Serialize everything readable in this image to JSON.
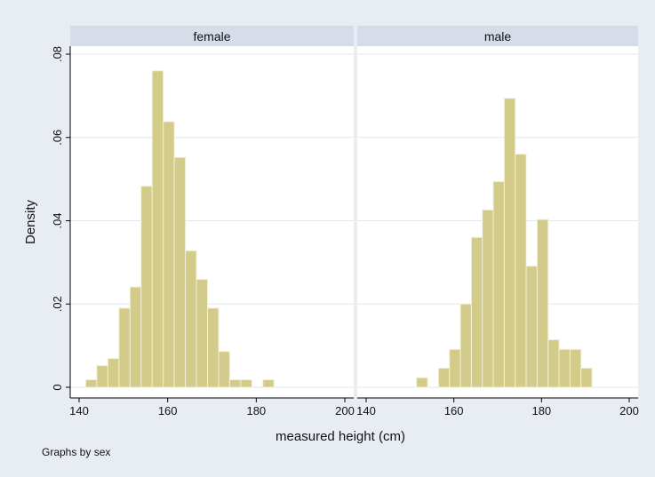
{
  "chart_data": {
    "type": "bar",
    "subtype": "histogram",
    "xlabel": "measured height (cm)",
    "ylabel": "Density",
    "xlim": [
      140,
      200
    ],
    "ylim": [
      0,
      0.08
    ],
    "x_ticks": [
      "140",
      "160",
      "180",
      "200"
    ],
    "y_ticks": [
      "0",
      ".02",
      ".04",
      ".06",
      ".08"
    ],
    "note": "Graphs by sex",
    "bin_width": 2.5,
    "grid": true,
    "colors": {
      "bar_fill": "#d3cb8a",
      "bar_stroke": "#f2efd6",
      "panel_header": "#d7dde8",
      "background": "#e8edf4"
    },
    "panels": [
      {
        "title": "female",
        "bins_start": [
          141.5,
          144,
          146.5,
          149,
          151.5,
          154,
          156.5,
          159,
          161.5,
          164,
          166.5,
          169,
          171.5,
          174,
          176.5,
          179,
          181.5
        ],
        "density": [
          0.0018,
          0.0052,
          0.0069,
          0.019,
          0.0241,
          0.0483,
          0.076,
          0.0638,
          0.0552,
          0.0328,
          0.0259,
          0.019,
          0.0086,
          0.0018,
          0.0018,
          0.0,
          0.0018
        ]
      },
      {
        "title": "male",
        "bins_start": [
          151.5,
          154,
          156.5,
          159,
          161.5,
          164,
          166.5,
          169,
          171.5,
          174,
          176.5,
          179,
          181.5,
          184,
          186.5,
          189
        ],
        "density": [
          0.0023,
          0.0,
          0.0046,
          0.0091,
          0.02,
          0.036,
          0.0426,
          0.0494,
          0.0694,
          0.056,
          0.0291,
          0.0403,
          0.0114,
          0.0091,
          0.0091,
          0.0046
        ]
      }
    ]
  }
}
